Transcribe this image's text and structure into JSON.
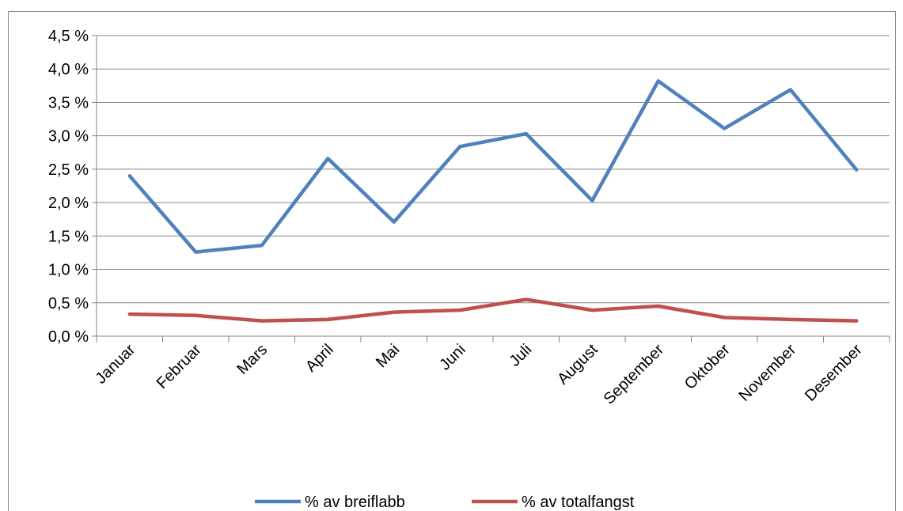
{
  "chart_data": {
    "type": "line",
    "categories": [
      "Januar",
      "Februar",
      "Mars",
      "April",
      "Mai",
      "Juni",
      "Juli",
      "August",
      "September",
      "Oktober",
      "November",
      "Desember"
    ],
    "series": [
      {
        "name": "% av breiflabb",
        "color": "#4f81bd",
        "values": [
          2.4,
          1.26,
          1.36,
          2.66,
          1.71,
          2.84,
          3.03,
          2.03,
          3.82,
          3.11,
          3.69,
          2.49
        ]
      },
      {
        "name": "% av totalfangst",
        "color": "#c0504d",
        "values": [
          0.33,
          0.31,
          0.23,
          0.25,
          0.36,
          0.39,
          0.55,
          0.39,
          0.45,
          0.28,
          0.25,
          0.23
        ]
      }
    ],
    "ylim": [
      0,
      4.5
    ],
    "yticks": [
      {
        "value": 0,
        "label": "0,0 %"
      },
      {
        "value": 0.5,
        "label": "0,5 %"
      },
      {
        "value": 1,
        "label": "1,0 %"
      },
      {
        "value": 1.5,
        "label": "1,5 %"
      },
      {
        "value": 2,
        "label": "2,0 %"
      },
      {
        "value": 2.5,
        "label": "2,5 %"
      },
      {
        "value": 3,
        "label": "3,0 %"
      },
      {
        "value": 3.5,
        "label": "3,5 %"
      },
      {
        "value": 4,
        "label": "4,0 %"
      },
      {
        "value": 4.5,
        "label": "4,5 %"
      }
    ],
    "grid": true,
    "legend": "bottom"
  }
}
